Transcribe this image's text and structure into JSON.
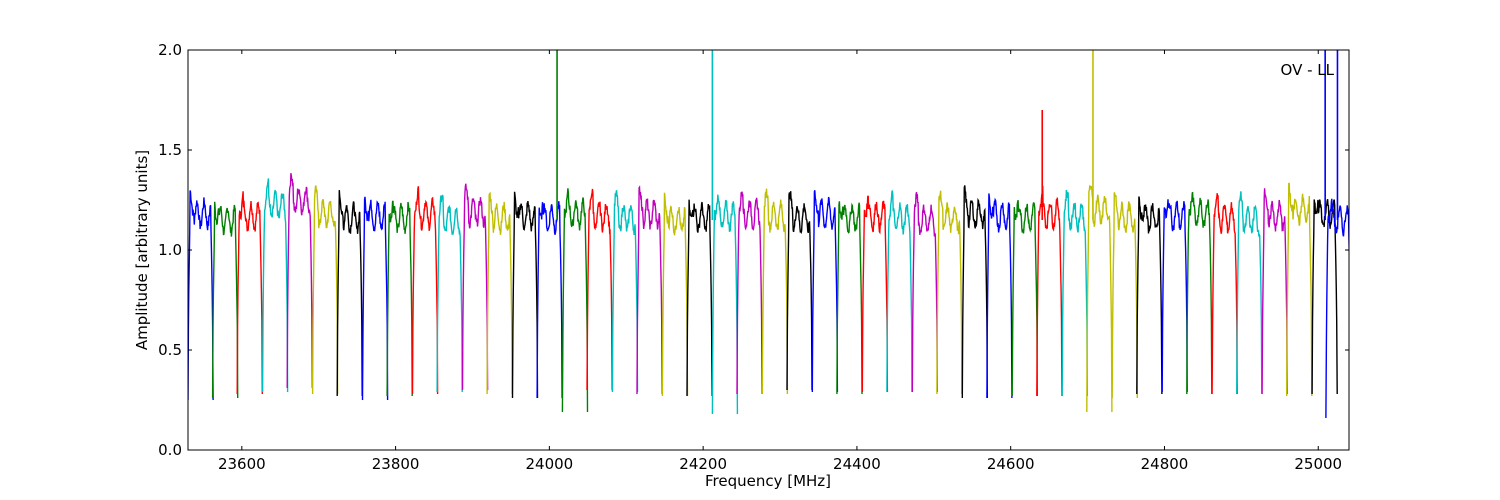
{
  "chart_data": {
    "type": "line",
    "title": "",
    "annotation": "OV - LL",
    "xlabel": "Frequency [MHz]",
    "ylabel": "Amplitude [arbitrary units]",
    "xlim": [
      23530,
      25040
    ],
    "ylim": [
      0.0,
      2.0
    ],
    "x_ticks": [
      23600,
      23800,
      24000,
      24200,
      24400,
      24600,
      24800,
      25000
    ],
    "y_ticks": [
      0.0,
      0.5,
      1.0,
      1.5,
      2.0
    ],
    "y_tick_labels": [
      "0.0",
      "0.5",
      "1.0",
      "1.5",
      "2.0"
    ],
    "grid": false,
    "legend": "none",
    "palette": [
      "#0000ff",
      "#008000",
      "#ff0000",
      "#00bfbf",
      "#bf00bf",
      "#bfbf00",
      "#000000"
    ],
    "segment_width_mhz": 32.6,
    "segments": [
      {
        "start": 23530,
        "color": "#0000ff",
        "min": 0.25,
        "level": 1.18
      },
      {
        "start": 23562,
        "color": "#008000",
        "min": 0.26,
        "level": 1.15
      },
      {
        "start": 23594,
        "color": "#ff0000",
        "min": 0.28,
        "level": 1.17
      },
      {
        "start": 23627,
        "color": "#00bfbf",
        "min": 0.29,
        "level": 1.22
      },
      {
        "start": 23659,
        "color": "#bf00bf",
        "min": 0.31,
        "level": 1.25
      },
      {
        "start": 23692,
        "color": "#bfbf00",
        "min": 0.28,
        "level": 1.18
      },
      {
        "start": 23724,
        "color": "#000000",
        "min": 0.27,
        "level": 1.16
      },
      {
        "start": 23757,
        "color": "#0000ff",
        "min": 0.25,
        "level": 1.17
      },
      {
        "start": 23789,
        "color": "#008000",
        "min": 0.27,
        "level": 1.16
      },
      {
        "start": 23822,
        "color": "#ff0000",
        "min": 0.28,
        "level": 1.18
      },
      {
        "start": 23854,
        "color": "#00bfbf",
        "min": 0.29,
        "level": 1.15
      },
      {
        "start": 23887,
        "color": "#bf00bf",
        "min": 0.3,
        "level": 1.19
      },
      {
        "start": 23919,
        "color": "#bfbf00",
        "min": 0.28,
        "level": 1.16
      },
      {
        "start": 23952,
        "color": "#000000",
        "min": 0.26,
        "level": 1.17
      },
      {
        "start": 23984,
        "color": "#0000ff",
        "min": 0.26,
        "level": 1.16
      },
      {
        "start": 24017,
        "color": "#008000",
        "min": 0.19,
        "level": 1.18
      },
      {
        "start": 24049,
        "color": "#ff0000",
        "min": 0.3,
        "level": 1.17
      },
      {
        "start": 24082,
        "color": "#00bfbf",
        "min": 0.29,
        "level": 1.16
      },
      {
        "start": 24114,
        "color": "#bf00bf",
        "min": 0.28,
        "level": 1.18
      },
      {
        "start": 24147,
        "color": "#bfbf00",
        "min": 0.27,
        "level": 1.15
      },
      {
        "start": 24179,
        "color": "#000000",
        "min": 0.27,
        "level": 1.16
      },
      {
        "start": 24212,
        "color": "#00bfbf",
        "min": 0.18,
        "level": 1.17
      },
      {
        "start": 24244,
        "color": "#bf00bf",
        "min": 0.28,
        "level": 1.18
      },
      {
        "start": 24277,
        "color": "#bfbf00",
        "min": 0.28,
        "level": 1.17
      },
      {
        "start": 24309,
        "color": "#000000",
        "min": 0.3,
        "level": 1.16
      },
      {
        "start": 24342,
        "color": "#0000ff",
        "min": 0.29,
        "level": 1.18
      },
      {
        "start": 24374,
        "color": "#008000",
        "min": 0.28,
        "level": 1.16
      },
      {
        "start": 24407,
        "color": "#ff0000",
        "min": 0.29,
        "level": 1.17
      },
      {
        "start": 24439,
        "color": "#00bfbf",
        "min": 0.29,
        "level": 1.16
      },
      {
        "start": 24472,
        "color": "#bf00bf",
        "min": 0.29,
        "level": 1.15
      },
      {
        "start": 24504,
        "color": "#bfbf00",
        "min": 0.28,
        "level": 1.16
      },
      {
        "start": 24537,
        "color": "#000000",
        "min": 0.26,
        "level": 1.18
      },
      {
        "start": 24569,
        "color": "#0000ff",
        "min": 0.26,
        "level": 1.17
      },
      {
        "start": 24602,
        "color": "#008000",
        "min": 0.27,
        "level": 1.16
      },
      {
        "start": 24634,
        "color": "#ff0000",
        "min": 0.27,
        "level": 1.18
      },
      {
        "start": 24667,
        "color": "#00bfbf",
        "min": 0.27,
        "level": 1.17
      },
      {
        "start": 24699,
        "color": "#bfbf00",
        "min": 0.19,
        "level": 1.2
      },
      {
        "start": 24732,
        "color": "#bfbf00",
        "min": 0.26,
        "level": 1.16
      },
      {
        "start": 24764,
        "color": "#000000",
        "min": 0.28,
        "level": 1.16
      },
      {
        "start": 24797,
        "color": "#0000ff",
        "min": 0.29,
        "level": 1.17
      },
      {
        "start": 24829,
        "color": "#008000",
        "min": 0.28,
        "level": 1.18
      },
      {
        "start": 24862,
        "color": "#ff0000",
        "min": 0.28,
        "level": 1.16
      },
      {
        "start": 24894,
        "color": "#00bfbf",
        "min": 0.28,
        "level": 1.15
      },
      {
        "start": 24927,
        "color": "#bf00bf",
        "min": 0.28,
        "level": 1.17
      },
      {
        "start": 24959,
        "color": "#bfbf00",
        "min": 0.27,
        "level": 1.2
      },
      {
        "start": 24992,
        "color": "#000000",
        "min": 0.28,
        "level": 1.18
      },
      {
        "start": 25010,
        "color": "#0000ff",
        "min": 0.16,
        "level": 1.15
      }
    ],
    "spikes": [
      {
        "x": 24010,
        "color": "#008000",
        "y": 2.0
      },
      {
        "x": 24212,
        "color": "#00bfbf",
        "y": 2.0
      },
      {
        "x": 24641,
        "color": "#ff0000",
        "y": 1.7
      },
      {
        "x": 24707,
        "color": "#bfbf00",
        "y": 2.0
      },
      {
        "x": 25009,
        "color": "#0000ff",
        "y": 2.0
      },
      {
        "x": 25025,
        "color": "#0000ff",
        "y": 2.0
      }
    ]
  }
}
